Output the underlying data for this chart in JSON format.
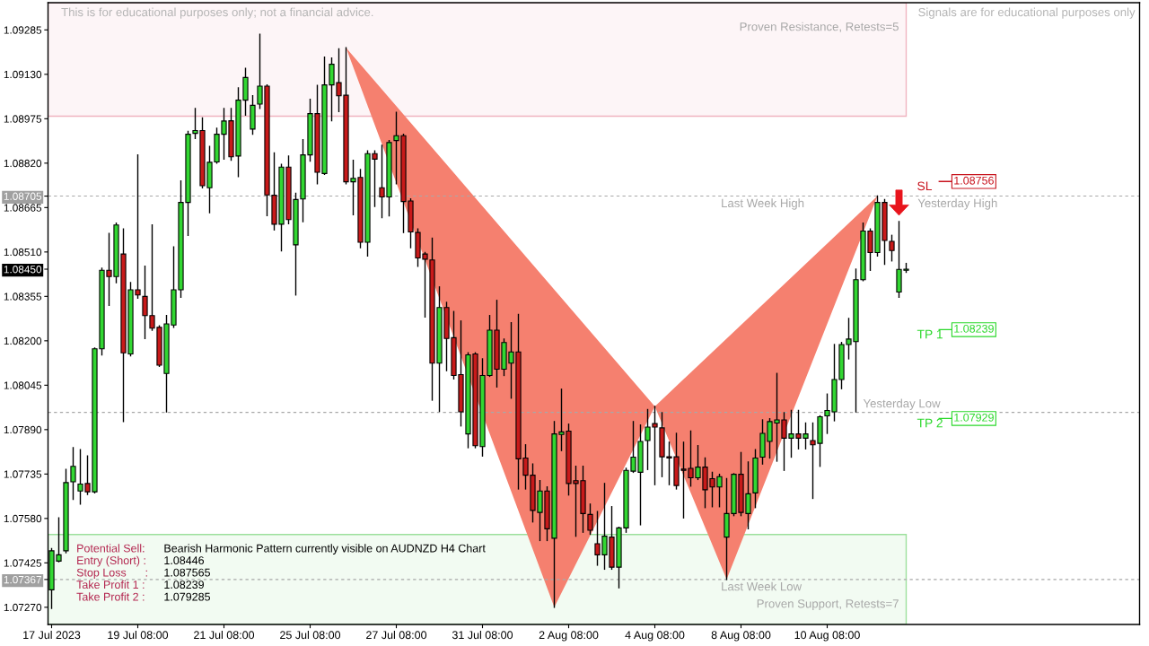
{
  "chart_data": {
    "type": "candlestick",
    "categories": [
      "17 Jul 2023",
      null,
      null,
      null,
      null,
      null,
      null,
      null,
      null,
      null,
      null,
      null,
      "19 Jul 08:00",
      null,
      null,
      null,
      null,
      null,
      null,
      null,
      null,
      null,
      null,
      null,
      "21 Jul 08:00",
      null,
      null,
      null,
      null,
      null,
      null,
      null,
      null,
      null,
      null,
      null,
      "25 Jul 08:00",
      null,
      null,
      null,
      null,
      null,
      null,
      null,
      null,
      null,
      null,
      null,
      "27 Jul 08:00",
      null,
      null,
      null,
      null,
      null,
      null,
      null,
      null,
      null,
      null,
      null,
      "31 Jul 08:00",
      null,
      null,
      null,
      null,
      null,
      null,
      null,
      null,
      null,
      null,
      null,
      "2 Aug 08:00",
      null,
      null,
      null,
      null,
      null,
      null,
      null,
      null,
      null,
      null,
      null,
      "4 Aug 08:00",
      null,
      null,
      null,
      null,
      null,
      null,
      null,
      null,
      null,
      null,
      null,
      "8 Aug 08:00",
      null,
      null,
      null,
      null,
      null,
      null,
      null,
      null,
      null,
      null,
      null,
      "10 Aug 08:00",
      null,
      null,
      null,
      null,
      null,
      null,
      null,
      null,
      null,
      null,
      null
    ],
    "ohlc": [
      [
        1.07331,
        1.07475,
        1.07266,
        1.07467
      ],
      [
        1.07431,
        1.07582,
        1.07429,
        1.07453
      ],
      [
        1.07467,
        1.07751,
        1.0746,
        1.07705
      ],
      [
        1.07708,
        1.07827,
        1.07647,
        1.07762
      ],
      [
        1.07676,
        1.0782,
        1.0763,
        1.077
      ],
      [
        1.07702,
        1.07798,
        1.07664,
        1.07673
      ],
      [
        1.07673,
        1.08175,
        1.07669,
        1.08172
      ],
      [
        1.08172,
        1.08453,
        1.08151,
        1.08446
      ],
      [
        1.08446,
        1.08575,
        1.08324,
        1.08424
      ],
      [
        1.08424,
        1.08611,
        1.08403,
        1.08604
      ],
      [
        1.08503,
        1.0859,
        1.07918,
        1.08158
      ],
      [
        1.08154,
        1.08403,
        1.08148,
        1.08378
      ],
      [
        1.08378,
        1.08849,
        1.08349,
        1.0836
      ],
      [
        1.08355,
        1.0846,
        1.08208,
        1.08288
      ],
      [
        1.08288,
        1.08604,
        1.08237,
        1.08244
      ],
      [
        1.08247,
        1.08252,
        1.08111,
        1.08115
      ],
      [
        1.08086,
        1.08288,
        1.07952,
        1.08259
      ],
      [
        1.08255,
        1.08528,
        1.08247,
        1.08378
      ],
      [
        1.08378,
        1.08758,
        1.08352,
        1.08683
      ],
      [
        1.08683,
        1.08931,
        1.08568,
        1.08921
      ],
      [
        1.08924,
        1.09011,
        1.08906,
        1.08934
      ],
      [
        1.08934,
        1.08978,
        1.08734,
        1.08741
      ],
      [
        1.08734,
        1.08878,
        1.08647,
        1.08823
      ],
      [
        1.08824,
        1.08942,
        1.0882,
        1.08921
      ],
      [
        1.08921,
        1.09011,
        1.08834,
        1.08967
      ],
      [
        1.08968,
        1.09011,
        1.0883,
        1.08842
      ],
      [
        1.08845,
        1.09083,
        1.08773,
        1.0904
      ],
      [
        1.0904,
        1.09151,
        1.08988,
        1.09119
      ],
      [
        1.08939,
        1.09055,
        1.08921,
        1.09022
      ],
      [
        1.09026,
        1.0927,
        1.09011,
        1.09089
      ],
      [
        1.09089,
        1.09093,
        1.08637,
        1.08709
      ],
      [
        1.08708,
        1.08856,
        1.08587,
        1.08607
      ],
      [
        1.08607,
        1.08816,
        1.08514,
        1.08806
      ],
      [
        1.08806,
        1.08845,
        1.08609,
        1.08623
      ],
      [
        1.08535,
        1.08715,
        1.0836,
        1.08693
      ],
      [
        1.08695,
        1.08902,
        1.08616,
        1.08849
      ],
      [
        1.08849,
        1.09043,
        1.08827,
        1.08993
      ],
      [
        1.08993,
        1.09091,
        1.08748,
        1.08788
      ],
      [
        1.08784,
        1.0919,
        1.08781,
        1.09093
      ],
      [
        1.09093,
        1.09187,
        1.08968,
        1.09165
      ],
      [
        1.09101,
        1.09219,
        1.09,
        1.09055
      ],
      [
        1.09057,
        1.09223,
        1.08748,
        1.08755
      ],
      [
        1.08755,
        1.0883,
        1.0864,
        1.08767
      ],
      [
        1.0877,
        1.08798,
        1.08525,
        1.08544
      ],
      [
        1.08544,
        1.08863,
        1.08496,
        1.08853
      ],
      [
        1.08853,
        1.08863,
        1.08669,
        1.08834
      ],
      [
        1.08734,
        1.08882,
        1.0863,
        1.08702
      ],
      [
        1.08702,
        1.08899,
        1.08636,
        1.08892
      ],
      [
        1.08899,
        1.08997,
        1.08748,
        1.08916
      ],
      [
        1.08916,
        1.08921,
        1.08578,
        1.08686
      ],
      [
        1.08688,
        1.08695,
        1.08525,
        1.0858
      ],
      [
        1.08578,
        1.0859,
        1.0846,
        1.08489
      ],
      [
        1.08503,
        1.08508,
        1.08283,
        1.08485
      ],
      [
        1.08482,
        1.08558,
        1.07993,
        1.08122
      ],
      [
        1.08122,
        1.08388,
        1.07954,
        1.08316
      ],
      [
        1.08316,
        1.08334,
        1.08096,
        1.08208
      ],
      [
        1.08211,
        1.08302,
        1.08067,
        1.08079
      ],
      [
        1.08082,
        1.08269,
        1.07903,
        1.07952
      ],
      [
        1.07875,
        1.08158,
        1.07827,
        1.08151
      ],
      [
        1.08154,
        1.08158,
        1.07827,
        1.07834
      ],
      [
        1.07831,
        1.08137,
        1.07798,
        1.08079
      ],
      [
        1.08079,
        1.08288,
        1.08076,
        1.08237
      ],
      [
        1.08237,
        1.08341,
        1.08039,
        1.08101
      ],
      [
        1.08101,
        1.08206,
        1.08079,
        1.08194
      ],
      [
        1.08122,
        1.08263,
        1.08,
        1.08161
      ],
      [
        1.08161,
        1.08292,
        1.07683,
        1.07788
      ],
      [
        1.07791,
        1.07837,
        1.07683,
        1.07731
      ],
      [
        1.07731,
        1.0777,
        1.07568,
        1.07608
      ],
      [
        1.07601,
        1.07712,
        1.07503,
        1.07676
      ],
      [
        1.07676,
        1.0769,
        1.07503,
        1.07544
      ],
      [
        1.07511,
        1.07918,
        1.0727,
        1.07875
      ],
      [
        1.07873,
        1.08031,
        1.07817,
        1.07882
      ],
      [
        1.07885,
        1.07909,
        1.07662,
        1.07702
      ],
      [
        1.07712,
        1.07762,
        1.07518,
        1.07702
      ],
      [
        1.07712,
        1.07762,
        1.07532,
        1.07597
      ],
      [
        1.07594,
        1.0763,
        1.07525,
        1.07539
      ],
      [
        1.07492,
        1.07604,
        1.07417,
        1.07453
      ],
      [
        1.07453,
        1.07702,
        1.07403,
        1.07518
      ],
      [
        1.07515,
        1.07621,
        1.07403,
        1.0741
      ],
      [
        1.0741,
        1.07549,
        1.07338,
        1.07547
      ],
      [
        1.07547,
        1.07755,
        1.07532,
        1.07748
      ],
      [
        1.07745,
        1.07918,
        1.07741,
        1.07794
      ],
      [
        1.07741,
        1.07906,
        1.07558,
        1.07849
      ],
      [
        1.07852,
        1.0796,
        1.07751,
        1.07899
      ],
      [
        1.07911,
        1.07971,
        1.07698,
        1.07899
      ],
      [
        1.07896,
        1.07949,
        1.07726,
        1.07795
      ],
      [
        1.07795,
        1.07846,
        1.07698,
        1.07791
      ],
      [
        1.07795,
        1.07877,
        1.07683,
        1.07695
      ],
      [
        1.07752,
        1.07846,
        1.07582,
        1.07748
      ],
      [
        1.07755,
        1.07885,
        1.07693,
        1.07722
      ],
      [
        1.07722,
        1.07834,
        1.07716,
        1.07759
      ],
      [
        1.07759,
        1.07791,
        1.07618,
        1.0768
      ],
      [
        1.07719,
        1.07741,
        1.07621,
        1.0769
      ],
      [
        1.0769,
        1.07734,
        1.07621,
        1.07726
      ],
      [
        1.07515,
        1.07719,
        1.07367,
        1.07597
      ],
      [
        1.07597,
        1.07736,
        1.0759,
        1.07734
      ],
      [
        1.07734,
        1.0781,
        1.0759,
        1.07601
      ],
      [
        1.07597,
        1.07777,
        1.07544,
        1.07666
      ],
      [
        1.07669,
        1.0782,
        1.07618,
        1.07791
      ],
      [
        1.07794,
        1.07924,
        1.0777,
        1.07877
      ],
      [
        1.07849,
        1.07928,
        1.07791,
        1.07918
      ],
      [
        1.07913,
        1.08086,
        1.0778,
        1.07924
      ],
      [
        1.07924,
        1.07949,
        1.07748,
        1.0786
      ],
      [
        1.0786,
        1.07957,
        1.07794,
        1.07875
      ],
      [
        1.07875,
        1.07957,
        1.07823,
        1.0786
      ],
      [
        1.0786,
        1.07913,
        1.07823,
        1.07875
      ],
      [
        1.07852,
        1.07913,
        1.0765,
        1.07837
      ],
      [
        1.07842,
        1.07938,
        1.07762,
        1.07935
      ],
      [
        1.07938,
        1.08014,
        1.07877,
        1.07957
      ],
      [
        1.07952,
        1.08187,
        1.07921,
        1.08065
      ],
      [
        1.08065,
        1.08194,
        1.08033,
        1.08187
      ],
      [
        1.08187,
        1.08278,
        1.08137,
        1.08206
      ],
      [
        1.08197,
        1.0845,
        1.07952,
        1.08413
      ],
      [
        1.08413,
        1.08611,
        1.0841,
        1.08583
      ],
      [
        1.08583,
        1.0859,
        1.08446,
        1.08508
      ],
      [
        1.08508,
        1.08705,
        1.08496,
        1.08683
      ],
      [
        1.08683,
        1.08693,
        1.08467,
        1.0855
      ],
      [
        1.08547,
        1.08568,
        1.08479,
        1.08515
      ],
      [
        1.0837,
        1.08616,
        1.08352,
        1.08449
      ],
      [
        1.08446,
        1.0847,
        1.08439,
        1.0845
      ]
    ],
    "colors": [
      "#32d732",
      "#32d732",
      "#32d732",
      "#32d732",
      "#32d732",
      "#c81a1a",
      "#32d732",
      "#32d732",
      "#c81a1a",
      "#32d732",
      "#c81a1a",
      "#32d732",
      "#c81a1a",
      "#c81a1a",
      "#c81a1a",
      "#c81a1a",
      "#32d732",
      "#32d732",
      "#32d732",
      "#32d732",
      "#32d732",
      "#c81a1a",
      "#32d732",
      "#32d732",
      "#32d732",
      "#c81a1a",
      "#32d732",
      "#32d732",
      "#32d732",
      "#32d732",
      "#c81a1a",
      "#c81a1a",
      "#32d732",
      "#c81a1a",
      "#32d732",
      "#32d732",
      "#32d732",
      "#c81a1a",
      "#32d732",
      "#32d732",
      "#c81a1a",
      "#c81a1a",
      "#32d732",
      "#c81a1a",
      "#32d732",
      "#c81a1a",
      "#c81a1a",
      "#32d732",
      "#32d732",
      "#c81a1a",
      "#c81a1a",
      "#c81a1a",
      "#c81a1a",
      "#c81a1a",
      "#32d732",
      "#c81a1a",
      "#c81a1a",
      "#c81a1a",
      "#32d732",
      "#c81a1a",
      "#32d732",
      "#32d732",
      "#c81a1a",
      "#32d732",
      "#32d732",
      "#c81a1a",
      "#c81a1a",
      "#c81a1a",
      "#32d732",
      "#c81a1a",
      "#32d732",
      "#32d732",
      "#c81a1a",
      "#c81a1a",
      "#c81a1a",
      "#c81a1a",
      "#c81a1a",
      "#32d732",
      "#c81a1a",
      "#32d732",
      "#32d732",
      "#32d732",
      "#32d732",
      "#32d732",
      "#c81a1a",
      "#c81a1a",
      "#c81a1a",
      "#c81a1a",
      "#c81a1a",
      "#c81a1a",
      "#32d732",
      "#c81a1a",
      "#c81a1a",
      "#32d732",
      "#32d732",
      "#32d732",
      "#c81a1a",
      "#32d732",
      "#32d732",
      "#32d732",
      "#32d732",
      "#32d732",
      "#c81a1a",
      "#32d732",
      "#c81a1a",
      "#32d732",
      "#c81a1a",
      "#32d732",
      "#32d732",
      "#32d732",
      "#32d732",
      "#32d732",
      "#32d732",
      "#32d732",
      "#c81a1a",
      "#32d732",
      "#c81a1a",
      "#c81a1a",
      "#32d732",
      "#32d732"
    ],
    "series": [
      {
        "type": "area",
        "color": "#f5806f",
        "values": [
          null,
          null,
          null,
          null,
          null,
          null,
          null,
          null,
          null,
          null,
          null,
          null,
          null,
          null,
          null,
          null,
          null,
          null,
          null,
          null,
          null,
          null,
          null,
          null,
          null,
          null,
          null,
          null,
          null,
          null,
          null,
          null,
          null,
          null,
          null,
          null,
          null,
          null,
          null,
          null,
          null,
          1.09223,
          null,
          null,
          null,
          null,
          null,
          null,
          null,
          null,
          null,
          null,
          null,
          null,
          null,
          null,
          null,
          null,
          null,
          null,
          null,
          null,
          null,
          null,
          null,
          null,
          null,
          null,
          null,
          null,
          1.0727,
          null,
          null,
          null,
          null,
          null,
          null,
          null,
          null,
          null,
          null,
          null,
          null,
          null,
          1.07971,
          null,
          null,
          null,
          null,
          null,
          null,
          null,
          null,
          null,
          1.07367,
          null,
          null,
          null,
          null,
          null,
          null,
          null,
          null,
          null,
          null,
          null,
          null,
          null,
          null,
          null,
          null,
          null,
          null,
          null,
          null,
          1.08705,
          null,
          null,
          null,
          null
        ]
      }
    ],
    "ylim": [
      1.0721,
      1.0938
    ],
    "yticks": [
      {
        "value": 1.0727,
        "label": "1.07270"
      },
      {
        "value": 1.07367,
        "label": "1.07367"
      },
      {
        "value": 1.07425,
        "label": "1.07425"
      },
      {
        "value": 1.0758,
        "label": "1.07580"
      },
      {
        "value": 1.07735,
        "label": "1.07735"
      },
      {
        "value": 1.0789,
        "label": "1.07890"
      },
      {
        "value": 1.08045,
        "label": "1.08045"
      },
      {
        "value": 1.082,
        "label": "1.08200"
      },
      {
        "value": 1.08355,
        "label": "1.08355"
      },
      {
        "value": 1.0845,
        "label": "1.08450"
      },
      {
        "value": 1.0851,
        "label": "1.08510"
      },
      {
        "value": 1.08665,
        "label": "1.08665"
      },
      {
        "value": 1.08705,
        "label": "1.08705"
      },
      {
        "value": 1.0882,
        "label": "1.08820"
      },
      {
        "value": 1.08975,
        "label": "1.08975"
      },
      {
        "value": 1.0913,
        "label": "1.09130"
      },
      {
        "value": 1.09285,
        "label": "1.09285"
      }
    ],
    "bands": [
      {
        "axis": "y",
        "from": 1.08984,
        "to": 1.0938,
        "label": "Proven Resistance, Retests=5",
        "color": "#f0b4c0"
      },
      {
        "axis": "y",
        "from": 1.0721,
        "to": 1.07524,
        "label": "Proven Support, Retests=7",
        "color": "#9ce09c"
      }
    ],
    "ref_lines": [
      {
        "axis": "y",
        "value": 1.08705,
        "label": "Last Week High",
        "color": "#a8a8a8",
        "line_style": "dashed"
      },
      {
        "axis": "y",
        "value": 1.0795,
        "label": "Yesterday Low",
        "color": "#a8a8a8",
        "line_style": "dashed"
      },
      {
        "axis": "y",
        "value": 1.07367,
        "label": "Last Week Low",
        "color": "#a8a8a8",
        "line_style": "dashed"
      },
      {
        "axis": "y",
        "value": 1.08756,
        "label": "SL",
        "color": "#c8141e",
        "line_style": "solid"
      },
      {
        "axis": "y",
        "value": 1.08239,
        "label": "TP 1",
        "color": "#2ad82a",
        "line_style": "solid"
      },
      {
        "axis": "y",
        "value": 1.07929,
        "label": "TP 2",
        "color": "#2ad82a",
        "line_style": "solid"
      }
    ],
    "annotations": [
      "This is for educational purposes only; not a financial advice.",
      "Signals are for educational purposes only",
      "1.08756",
      "1.08239",
      "1.07929",
      "Potential Sell:",
      "Bearish Harmonic Pattern currently visible on AUDNZD H4 Chart",
      "Entry (Short) :",
      "1.08446",
      "Stop Loss      :",
      "1.087565",
      "Take Profit 1 :",
      "1.08239",
      "Take Profit 2 :",
      "1.079285",
      {
        "text": "Yesterday High",
        "y": 1.08705
      }
    ]
  }
}
